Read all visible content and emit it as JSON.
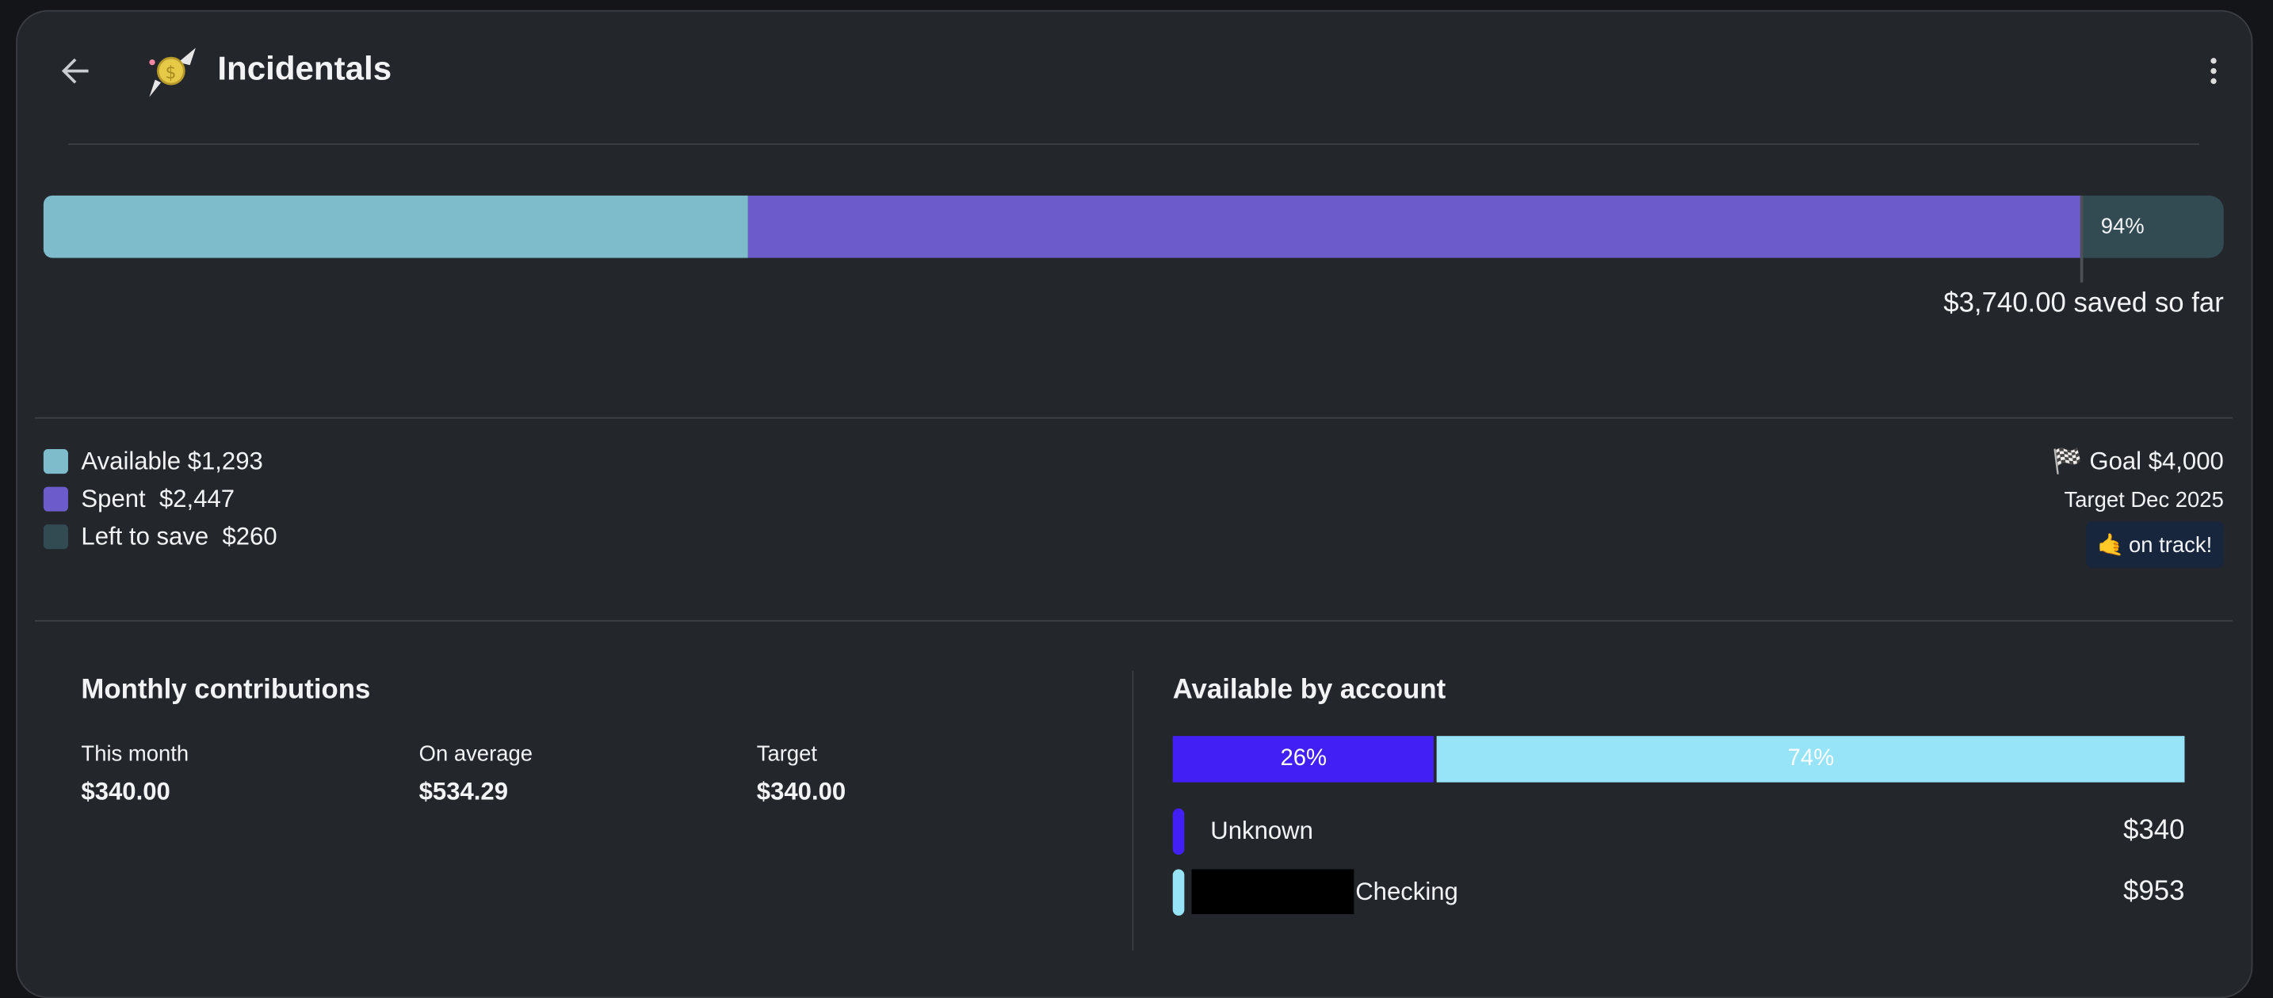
{
  "header": {
    "title": "Incidentals",
    "back_icon": "arrow-left-icon",
    "category_icon": "flying-money-coin-icon",
    "menu_icon": "kebab-menu-icon"
  },
  "progress": {
    "percent_label": "94%",
    "available": 1293,
    "spent": 2447,
    "left_to_save": 260,
    "goal": 4000,
    "saved_label": "$3,740.00 saved so far"
  },
  "colors": {
    "available": "#7ebccb",
    "spent": "#6c5bcb",
    "left_to_save": "#324b52",
    "unknown": "#421ff5",
    "checking": "#97e3f7",
    "badge_bg": "#18263d"
  },
  "legend": [
    {
      "label": "Available $1,293"
    },
    {
      "label": "Spent  $2,447"
    },
    {
      "label": "Left to save  $260"
    }
  ],
  "goal": {
    "flag": "🏁",
    "label": "Goal $4,000",
    "target": "Target Dec 2025",
    "badge_emoji": "🤙",
    "badge": "on track!"
  },
  "contributions": {
    "title": "Monthly contributions",
    "stats": [
      {
        "label": "This month",
        "value": "$340.00"
      },
      {
        "label": "On average",
        "value": "$534.29"
      },
      {
        "label": "Target",
        "value": "$340.00"
      }
    ]
  },
  "accounts": {
    "title": "Available by account",
    "segments": [
      {
        "label": "26%",
        "fraction": 0.26
      },
      {
        "label": "74%",
        "fraction": 0.74
      }
    ],
    "rows": [
      {
        "name": "Unknown",
        "amount": "$340"
      },
      {
        "name": "Checking",
        "amount": "$953"
      }
    ]
  }
}
